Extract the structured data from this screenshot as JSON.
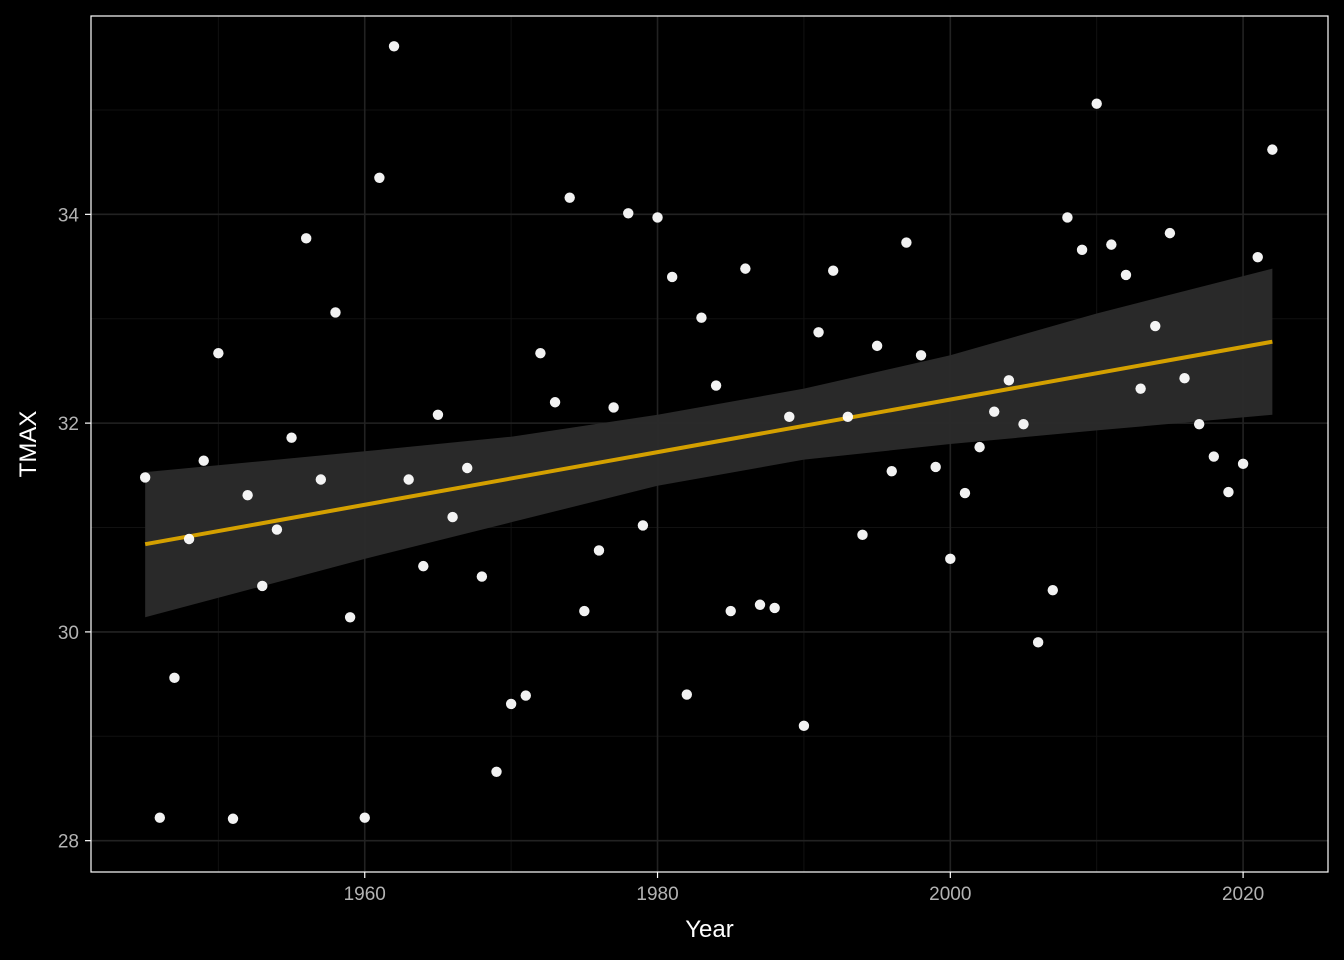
{
  "chart_data": {
    "type": "scatter",
    "title": "",
    "xlabel": "Year",
    "ylabel": "TMAX",
    "xlim": [
      1941.3,
      2025.8
    ],
    "ylim": [
      27.7,
      35.9
    ],
    "x_ticks": [
      1960,
      1980,
      2000,
      2020
    ],
    "y_ticks": [
      28,
      30,
      32,
      34
    ],
    "grid": true,
    "background": "#000000",
    "panel_border_color": "#ffffff",
    "grid_major_color": "#222222",
    "grid_minor_color": "#111111",
    "point_color": "#ffffff",
    "trend_color": "#d4a000",
    "ribbon_color": "#2b2b2b",
    "points": [
      [
        1945,
        31.48
      ],
      [
        1946,
        28.22
      ],
      [
        1947,
        29.56
      ],
      [
        1948,
        30.89
      ],
      [
        1949,
        31.64
      ],
      [
        1950,
        32.67
      ],
      [
        1951,
        28.21
      ],
      [
        1952,
        31.31
      ],
      [
        1953,
        30.44
      ],
      [
        1954,
        30.98
      ],
      [
        1955,
        31.86
      ],
      [
        1956,
        33.77
      ],
      [
        1957,
        31.46
      ],
      [
        1958,
        33.06
      ],
      [
        1959,
        30.14
      ],
      [
        1960,
        28.22
      ],
      [
        1961,
        34.35
      ],
      [
        1962,
        35.61
      ],
      [
        1963,
        31.46
      ],
      [
        1964,
        30.63
      ],
      [
        1965,
        32.08
      ],
      [
        1966,
        31.1
      ],
      [
        1967,
        31.57
      ],
      [
        1968,
        30.53
      ],
      [
        1969,
        28.66
      ],
      [
        1970,
        29.31
      ],
      [
        1971,
        29.39
      ],
      [
        1972,
        32.67
      ],
      [
        1973,
        32.2
      ],
      [
        1974,
        34.16
      ],
      [
        1975,
        30.2
      ],
      [
        1976,
        30.78
      ],
      [
        1977,
        32.15
      ],
      [
        1978,
        34.01
      ],
      [
        1979,
        31.02
      ],
      [
        1980,
        33.97
      ],
      [
        1981,
        33.4
      ],
      [
        1982,
        29.4
      ],
      [
        1983,
        33.01
      ],
      [
        1984,
        32.36
      ],
      [
        1985,
        30.2
      ],
      [
        1986,
        33.48
      ],
      [
        1987,
        30.26
      ],
      [
        1988,
        30.23
      ],
      [
        1989,
        32.06
      ],
      [
        1990,
        29.1
      ],
      [
        1991,
        32.87
      ],
      [
        1992,
        33.46
      ],
      [
        1993,
        32.06
      ],
      [
        1994,
        30.93
      ],
      [
        1995,
        32.74
      ],
      [
        1996,
        31.54
      ],
      [
        1997,
        33.73
      ],
      [
        1998,
        32.65
      ],
      [
        1999,
        31.58
      ],
      [
        2000,
        30.7
      ],
      [
        2001,
        31.33
      ],
      [
        2002,
        31.77
      ],
      [
        2003,
        32.11
      ],
      [
        2004,
        32.41
      ],
      [
        2005,
        31.99
      ],
      [
        2006,
        29.9
      ],
      [
        2007,
        30.4
      ],
      [
        2008,
        33.97
      ],
      [
        2009,
        33.66
      ],
      [
        2010,
        35.06
      ],
      [
        2011,
        33.71
      ],
      [
        2012,
        33.42
      ],
      [
        2013,
        32.33
      ],
      [
        2014,
        32.93
      ],
      [
        2015,
        33.82
      ],
      [
        2016,
        32.43
      ],
      [
        2017,
        31.99
      ],
      [
        2018,
        31.68
      ],
      [
        2019,
        31.34
      ],
      [
        2020,
        31.61
      ],
      [
        2021,
        33.59
      ],
      [
        2022,
        34.62
      ]
    ],
    "trend_line": {
      "x": [
        1945,
        2022
      ],
      "y": [
        30.84,
        32.78
      ]
    },
    "confidence_band": [
      [
        1945,
        30.14,
        31.53
      ],
      [
        1960,
        30.7,
        31.73
      ],
      [
        1970,
        31.05,
        31.87
      ],
      [
        1980,
        31.4,
        32.08
      ],
      [
        1990,
        31.65,
        32.33
      ],
      [
        2000,
        31.8,
        32.65
      ],
      [
        2010,
        31.93,
        33.05
      ],
      [
        2022,
        32.08,
        33.48
      ]
    ]
  }
}
